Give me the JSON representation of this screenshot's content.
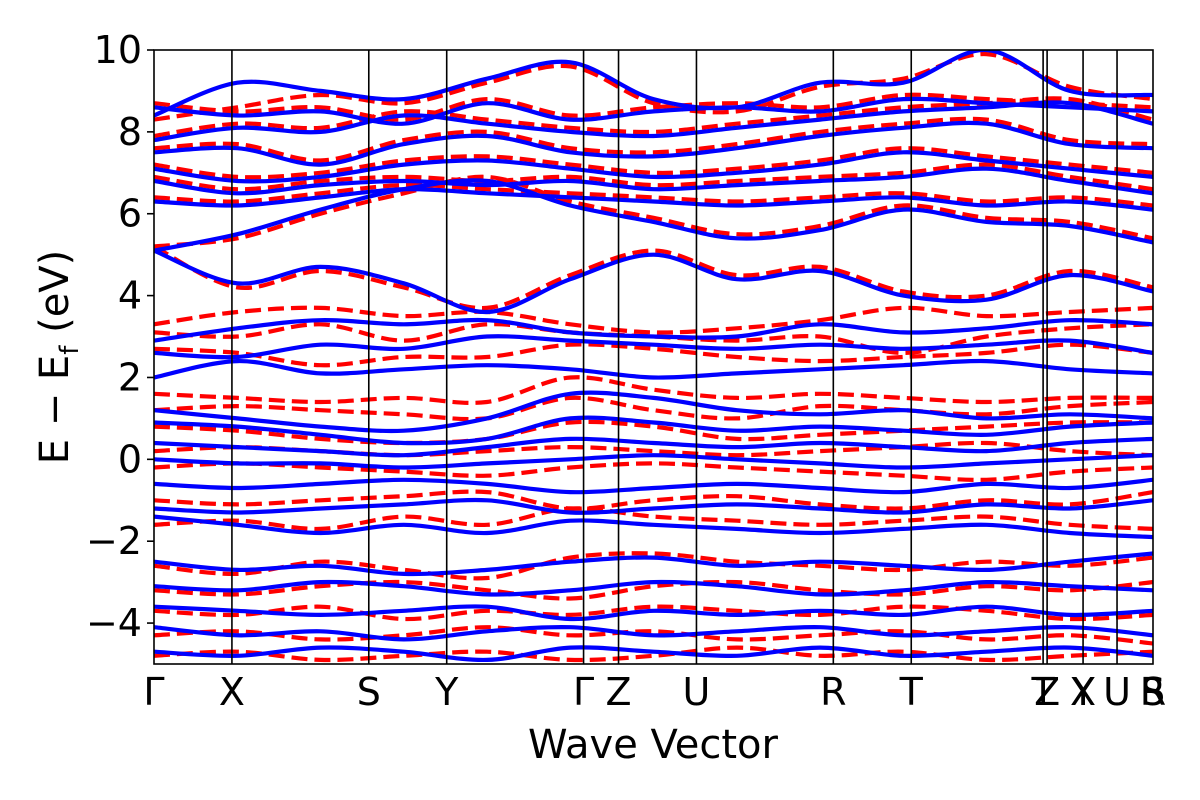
{
  "chart_data": {
    "type": "line",
    "title": "",
    "xlabel": "Wave Vector",
    "ylabel_parts": [
      "E − E",
      "f",
      " (eV)"
    ],
    "ylim": [
      -5,
      10
    ],
    "yticks": [
      -4,
      -2,
      0,
      2,
      4,
      6,
      8,
      10
    ],
    "ytick_labels": [
      "−4",
      "−2",
      "0",
      "2",
      "4",
      "6",
      "8",
      "10"
    ],
    "grid": false,
    "legend": "none",
    "colors": {
      "dashed_series": "#ff0000",
      "solid_series": "#0000ff",
      "kpath_lines": "#000000"
    },
    "kpoints": [
      {
        "label": "Γ",
        "x": 0.0
      },
      {
        "label": "X",
        "x": 0.078
      },
      {
        "label": "S",
        "x": 0.215
      },
      {
        "label": "Y",
        "x": 0.293
      },
      {
        "label": "Γ",
        "x": 0.43
      },
      {
        "label": "Z",
        "x": 0.465
      },
      {
        "label": "U",
        "x": 0.543
      },
      {
        "label": "R",
        "x": 0.68
      },
      {
        "label": "T",
        "x": 0.758
      },
      {
        "label": "Z",
        "x": 0.894
      },
      {
        "label": "T",
        "x": 0.89
      },
      {
        "label": "Y",
        "x": 0.93
      },
      {
        "label": "X",
        "x": 0.93
      },
      {
        "label": "U",
        "x": 0.964
      },
      {
        "label": "S",
        "x": 1.0
      },
      {
        "label": "R",
        "x": 1.0
      }
    ],
    "series": [
      {
        "style": "dashed",
        "bands": [
          [
            8.7,
            8.5,
            8.6,
            8.3,
            8.8,
            8.4,
            8.6,
            8.7,
            8.6,
            8.9,
            8.8,
            8.7,
            8.6
          ],
          [
            8.3,
            8.6,
            8.9,
            8.7,
            9.2,
            9.6,
            8.7,
            8.5,
            9.1,
            9.3,
            9.9,
            9.1,
            8.8
          ],
          [
            7.9,
            8.2,
            8.1,
            8.5,
            8.3,
            8.1,
            8.0,
            8.2,
            8.4,
            8.6,
            8.7,
            8.8,
            8.3
          ],
          [
            7.6,
            7.7,
            7.3,
            7.8,
            8.0,
            7.6,
            7.5,
            7.7,
            8.0,
            8.2,
            8.3,
            7.8,
            7.7
          ],
          [
            7.2,
            6.9,
            7.0,
            7.3,
            7.4,
            7.2,
            7.0,
            7.1,
            7.3,
            7.6,
            7.4,
            7.2,
            7.0
          ],
          [
            6.9,
            6.6,
            6.8,
            6.9,
            6.8,
            6.9,
            6.7,
            6.8,
            6.9,
            7.0,
            7.2,
            6.9,
            6.6
          ],
          [
            6.4,
            6.3,
            6.5,
            6.7,
            6.6,
            6.5,
            6.4,
            6.3,
            6.4,
            6.5,
            6.3,
            6.4,
            6.2
          ],
          [
            5.2,
            5.4,
            6.0,
            6.5,
            6.9,
            6.3,
            5.9,
            5.5,
            5.7,
            6.2,
            5.9,
            5.8,
            5.4
          ],
          [
            5.2,
            4.2,
            4.6,
            4.2,
            3.7,
            4.5,
            5.1,
            4.5,
            4.7,
            4.1,
            4.0,
            4.6,
            4.2
          ],
          [
            3.3,
            3.6,
            3.7,
            3.5,
            3.6,
            3.3,
            3.1,
            3.2,
            3.4,
            3.7,
            3.5,
            3.6,
            3.7
          ],
          [
            3.1,
            3.0,
            3.3,
            2.9,
            3.3,
            3.1,
            3.0,
            2.9,
            3.0,
            2.6,
            3.0,
            3.2,
            3.3
          ],
          [
            2.7,
            2.6,
            2.3,
            2.5,
            2.5,
            2.8,
            2.7,
            2.5,
            2.4,
            2.5,
            2.6,
            2.8,
            2.6
          ],
          [
            1.6,
            1.5,
            1.4,
            1.5,
            1.4,
            2.0,
            1.7,
            1.5,
            1.6,
            1.5,
            1.4,
            1.5,
            1.5
          ],
          [
            1.2,
            1.3,
            1.2,
            1.1,
            1.0,
            1.5,
            1.2,
            1.0,
            1.3,
            1.2,
            1.1,
            1.3,
            1.4
          ],
          [
            0.8,
            0.7,
            0.5,
            0.4,
            0.5,
            0.9,
            0.8,
            0.5,
            0.6,
            0.7,
            0.8,
            0.9,
            0.9
          ],
          [
            0.2,
            0.3,
            0.2,
            0.1,
            0.2,
            0.3,
            0.2,
            0.1,
            0.2,
            0.3,
            0.4,
            0.2,
            0.1
          ],
          [
            -0.2,
            -0.1,
            -0.2,
            -0.3,
            -0.4,
            -0.2,
            -0.1,
            -0.2,
            -0.3,
            -0.4,
            -0.5,
            -0.3,
            -0.2
          ],
          [
            -1.0,
            -1.1,
            -1.0,
            -0.9,
            -0.8,
            -1.2,
            -1.0,
            -0.9,
            -1.1,
            -1.2,
            -1.0,
            -1.1,
            -0.8
          ],
          [
            -1.6,
            -1.5,
            -1.7,
            -1.4,
            -1.6,
            -1.2,
            -1.4,
            -1.5,
            -1.6,
            -1.5,
            -1.4,
            -1.6,
            -1.7
          ],
          [
            -2.6,
            -2.8,
            -2.5,
            -2.7,
            -2.9,
            -2.4,
            -2.3,
            -2.5,
            -2.6,
            -2.7,
            -2.5,
            -2.6,
            -2.4
          ],
          [
            -3.2,
            -3.3,
            -3.1,
            -3.0,
            -3.2,
            -3.4,
            -3.1,
            -3.0,
            -3.2,
            -3.3,
            -3.1,
            -3.2,
            -3.0
          ],
          [
            -3.7,
            -3.8,
            -3.6,
            -3.9,
            -3.7,
            -3.8,
            -3.6,
            -3.7,
            -3.8,
            -3.6,
            -3.7,
            -3.9,
            -3.8
          ],
          [
            -4.3,
            -4.2,
            -4.4,
            -4.3,
            -4.1,
            -4.3,
            -4.2,
            -4.4,
            -4.3,
            -4.2,
            -4.4,
            -4.3,
            -4.5
          ],
          [
            -4.8,
            -4.7,
            -4.9,
            -4.8,
            -4.7,
            -4.9,
            -4.8,
            -4.6,
            -4.8,
            -4.7,
            -4.9,
            -4.8,
            -4.7
          ]
        ]
      },
      {
        "style": "solid",
        "bands": [
          [
            8.6,
            8.4,
            8.5,
            8.2,
            8.7,
            8.3,
            8.5,
            8.6,
            8.5,
            8.8,
            8.7,
            8.6,
            8.5
          ],
          [
            8.4,
            9.2,
            9.0,
            8.8,
            9.3,
            9.7,
            8.8,
            8.6,
            9.2,
            9.2,
            10.0,
            9.0,
            8.9
          ],
          [
            7.8,
            8.1,
            8.0,
            8.4,
            8.2,
            8.0,
            7.9,
            8.1,
            8.3,
            8.5,
            8.6,
            8.7,
            8.2
          ],
          [
            7.5,
            7.6,
            7.2,
            7.7,
            7.9,
            7.5,
            7.4,
            7.6,
            7.9,
            8.1,
            8.2,
            7.7,
            7.6
          ],
          [
            7.1,
            6.8,
            6.9,
            7.2,
            7.3,
            7.1,
            6.9,
            7.0,
            7.2,
            7.5,
            7.3,
            7.1,
            6.9
          ],
          [
            6.8,
            6.5,
            6.7,
            6.8,
            6.7,
            6.8,
            6.6,
            6.7,
            6.8,
            6.9,
            7.1,
            6.8,
            6.5
          ],
          [
            6.3,
            6.2,
            6.4,
            6.6,
            6.5,
            6.4,
            6.3,
            6.2,
            6.3,
            6.4,
            6.2,
            6.3,
            6.1
          ],
          [
            5.1,
            5.5,
            6.1,
            6.6,
            6.8,
            6.2,
            5.8,
            5.4,
            5.6,
            6.1,
            5.8,
            5.7,
            5.3
          ],
          [
            5.1,
            4.3,
            4.7,
            4.3,
            3.6,
            4.4,
            5.0,
            4.4,
            4.6,
            4.0,
            3.9,
            4.5,
            4.1
          ],
          [
            2.9,
            3.2,
            3.4,
            3.3,
            3.4,
            3.1,
            3.0,
            3.0,
            3.3,
            3.1,
            3.2,
            3.4,
            3.3
          ],
          [
            2.6,
            2.5,
            2.8,
            2.7,
            3.0,
            2.9,
            2.8,
            2.7,
            2.8,
            2.7,
            2.8,
            2.9,
            2.6
          ],
          [
            2.0,
            2.4,
            2.1,
            2.2,
            2.3,
            2.2,
            2.0,
            2.1,
            2.2,
            2.3,
            2.4,
            2.2,
            2.1
          ],
          [
            1.2,
            1.0,
            0.8,
            0.7,
            1.0,
            1.6,
            1.5,
            1.2,
            1.1,
            1.2,
            1.0,
            1.1,
            1.0
          ],
          [
            0.9,
            0.8,
            0.6,
            0.4,
            0.5,
            1.0,
            0.9,
            0.7,
            0.8,
            0.7,
            0.6,
            0.8,
            0.9
          ],
          [
            0.4,
            0.3,
            0.2,
            0.1,
            0.3,
            0.5,
            0.4,
            0.3,
            0.4,
            0.3,
            0.2,
            0.4,
            0.5
          ],
          [
            0.0,
            -0.1,
            -0.1,
            -0.2,
            -0.1,
            0.0,
            0.1,
            0.0,
            -0.1,
            -0.2,
            -0.1,
            0.0,
            0.1
          ],
          [
            -0.6,
            -0.7,
            -0.6,
            -0.5,
            -0.6,
            -0.8,
            -0.7,
            -0.6,
            -0.7,
            -0.8,
            -0.6,
            -0.7,
            -0.5
          ],
          [
            -1.2,
            -1.3,
            -1.2,
            -1.1,
            -1.0,
            -1.3,
            -1.2,
            -1.1,
            -1.2,
            -1.3,
            -1.1,
            -1.2,
            -1.0
          ],
          [
            -1.4,
            -1.6,
            -1.8,
            -1.6,
            -1.8,
            -1.5,
            -1.6,
            -1.7,
            -1.8,
            -1.7,
            -1.6,
            -1.8,
            -1.9
          ],
          [
            -2.5,
            -2.7,
            -2.6,
            -2.8,
            -2.7,
            -2.5,
            -2.4,
            -2.6,
            -2.5,
            -2.6,
            -2.7,
            -2.5,
            -2.3
          ],
          [
            -3.1,
            -3.2,
            -3.0,
            -3.1,
            -3.3,
            -3.2,
            -3.0,
            -3.1,
            -3.3,
            -3.2,
            -3.0,
            -3.1,
            -3.2
          ],
          [
            -3.6,
            -3.7,
            -3.8,
            -3.7,
            -3.6,
            -3.9,
            -3.7,
            -3.8,
            -3.7,
            -3.8,
            -3.6,
            -3.8,
            -3.7
          ],
          [
            -4.1,
            -4.3,
            -4.2,
            -4.4,
            -4.2,
            -4.1,
            -4.3,
            -4.2,
            -4.1,
            -4.3,
            -4.2,
            -4.1,
            -4.3
          ],
          [
            -4.7,
            -4.8,
            -4.6,
            -4.7,
            -4.9,
            -4.6,
            -4.7,
            -4.8,
            -4.6,
            -4.8,
            -4.7,
            -4.6,
            -4.8
          ]
        ]
      }
    ]
  }
}
